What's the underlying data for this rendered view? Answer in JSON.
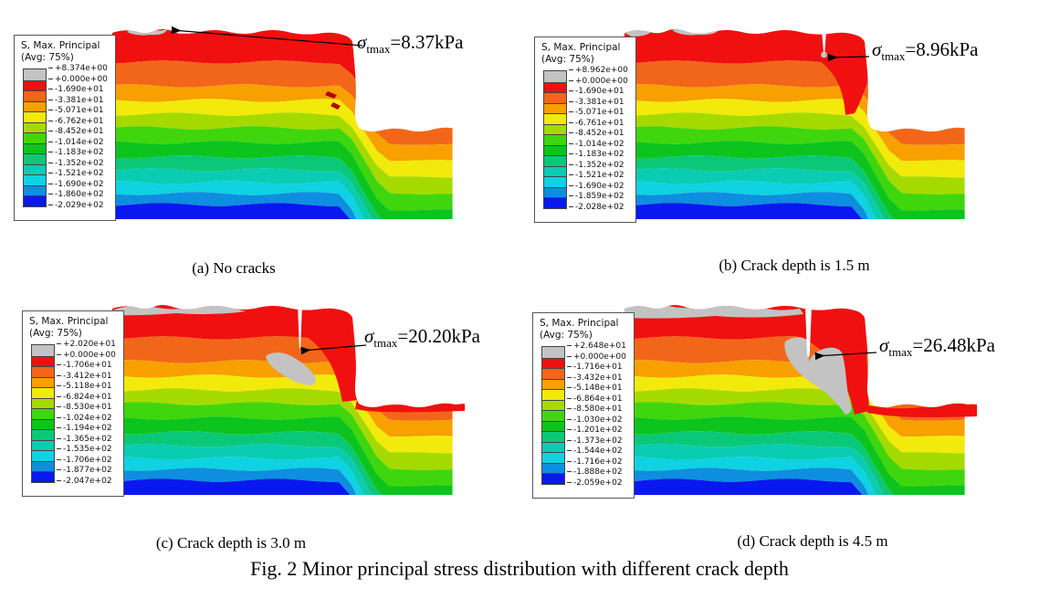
{
  "figure": {
    "caption": "Fig. 2 Minor principal stress distribution with different crack depth",
    "legend_title": "S, Max. Principal",
    "legend_subtitle": "(Avg: 75%)",
    "band_colors": [
      "#c3c3c3",
      "#f01010",
      "#f2661a",
      "#f7a000",
      "#f2ea0a",
      "#a5da00",
      "#3fd60e",
      "#0cc41d",
      "#0bc878",
      "#0accb2",
      "#0fd2e2",
      "#0e8ede",
      "#0a18f0"
    ],
    "panels": [
      {
        "id": "a",
        "caption": "(a) No cracks",
        "annotation": {
          "symbol": "σ",
          "subscript": "tmax",
          "value": "=8.37kPa"
        },
        "legend_values": [
          "+8.374e+00",
          "+0.000e+00",
          "-1.690e+01",
          "-3.381e+01",
          "-5.071e+01",
          "-6.762e+01",
          "-8.452e+01",
          "-1.014e+02",
          "-1.183e+02",
          "-1.352e+02",
          "-1.521e+02",
          "-1.690e+02",
          "-1.860e+02",
          "-2.029e+02"
        ]
      },
      {
        "id": "b",
        "caption": "(b) Crack depth is 1.5 m",
        "annotation": {
          "symbol": "σ",
          "subscript": "tmax",
          "value": "=8.96kPa"
        },
        "legend_values": [
          "+8.962e+00",
          "+0.000e+00",
          "-1.690e+01",
          "-3.381e+01",
          "-5.071e+01",
          "-6.761e+01",
          "-8.452e+01",
          "-1.014e+02",
          "-1.183e+02",
          "-1.352e+02",
          "-1.521e+02",
          "-1.690e+02",
          "-1.859e+02",
          "-2.028e+02"
        ]
      },
      {
        "id": "c",
        "caption": "(c) Crack depth is 3.0 m",
        "annotation": {
          "symbol": "σ",
          "subscript": "tmax",
          "value": "=20.20kPa"
        },
        "legend_values": [
          "+2.020e+01",
          "+0.000e+00",
          "-1.706e+01",
          "-3.412e+01",
          "-5.118e+01",
          "-6.824e+01",
          "-8.530e+01",
          "-1.024e+02",
          "-1.194e+02",
          "-1.365e+02",
          "-1.535e+02",
          "-1.706e+02",
          "-1.877e+02",
          "-2.047e+02"
        ]
      },
      {
        "id": "d",
        "caption": "(d) Crack depth is 4.5 m",
        "annotation": {
          "symbol": "σ",
          "subscript": "tmax",
          "value": "=26.48kPa"
        },
        "legend_values": [
          "+2.648e+01",
          "+0.000e+00",
          "-1.716e+01",
          "-3.432e+01",
          "-5.148e+01",
          "-6.864e+01",
          "-8.580e+01",
          "-1.030e+02",
          "-1.201e+02",
          "-1.373e+02",
          "-1.544e+02",
          "-1.716e+02",
          "-1.888e+02",
          "-2.059e+02"
        ]
      }
    ]
  }
}
